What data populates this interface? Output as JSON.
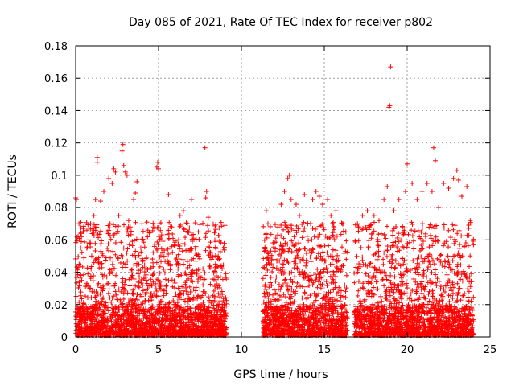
{
  "chart_data": {
    "type": "scatter",
    "title": "Day 085 of 2021, Rate Of TEC Index for receiver p802",
    "xlabel": "GPS time / hours",
    "ylabel": "ROTI / TECUs",
    "xlim": [
      0,
      25
    ],
    "ylim": [
      0,
      0.18
    ],
    "xticks": [
      0,
      5,
      10,
      15,
      20,
      25
    ],
    "yticks": [
      0,
      0.02,
      0.04,
      0.06,
      0.08,
      0.1,
      0.12,
      0.14,
      0.16,
      0.18
    ],
    "xtick_labels": [
      "0",
      "5",
      "10",
      "15",
      "20",
      "25"
    ],
    "ytick_labels": [
      "0",
      "0.02",
      "0.04",
      "0.06",
      "0.08",
      "0.1",
      "0.12",
      "0.14",
      "0.16",
      "0.18"
    ],
    "grid": true,
    "marker": "+",
    "series": [
      {
        "name": "ROTI",
        "color": "#ff0000",
        "segments": [
          [
            0,
            9.1
          ],
          [
            11.3,
            16.4
          ],
          [
            16.8,
            24.0
          ]
        ],
        "points": [
          [
            0.0,
            0.086
          ],
          [
            0.05,
            0.085
          ],
          [
            0.2,
            0.07
          ],
          [
            0.3,
            0.055
          ],
          [
            0.35,
            0.062
          ],
          [
            0.8,
            0.06
          ],
          [
            0.9,
            0.07
          ],
          [
            1.1,
            0.075
          ],
          [
            1.2,
            0.085
          ],
          [
            1.3,
            0.111
          ],
          [
            1.3,
            0.108
          ],
          [
            1.5,
            0.084
          ],
          [
            1.7,
            0.09
          ],
          [
            1.9,
            0.065
          ],
          [
            2.0,
            0.098
          ],
          [
            2.2,
            0.095
          ],
          [
            2.3,
            0.104
          ],
          [
            2.4,
            0.102
          ],
          [
            2.6,
            0.075
          ],
          [
            2.8,
            0.115
          ],
          [
            2.85,
            0.119
          ],
          [
            2.9,
            0.106
          ],
          [
            3.0,
            0.102
          ],
          [
            3.1,
            0.1
          ],
          [
            3.2,
            0.072
          ],
          [
            3.5,
            0.085
          ],
          [
            3.6,
            0.089
          ],
          [
            3.7,
            0.096
          ],
          [
            4.0,
            0.07
          ],
          [
            4.3,
            0.071
          ],
          [
            4.7,
            0.068
          ],
          [
            4.9,
            0.105
          ],
          [
            4.95,
            0.108
          ],
          [
            5.0,
            0.104
          ],
          [
            5.6,
            0.088
          ],
          [
            5.8,
            0.068
          ],
          [
            6.3,
            0.075
          ],
          [
            6.5,
            0.078
          ],
          [
            7.0,
            0.085
          ],
          [
            7.4,
            0.065
          ],
          [
            7.8,
            0.117
          ],
          [
            7.85,
            0.086
          ],
          [
            7.9,
            0.09
          ],
          [
            8.0,
            0.074
          ],
          [
            8.6,
            0.05
          ],
          [
            9.0,
            0.069
          ],
          [
            11.5,
            0.078
          ],
          [
            11.6,
            0.07
          ],
          [
            12.2,
            0.068
          ],
          [
            12.4,
            0.082
          ],
          [
            12.6,
            0.09
          ],
          [
            12.8,
            0.098
          ],
          [
            12.9,
            0.1
          ],
          [
            13.0,
            0.085
          ],
          [
            13.3,
            0.082
          ],
          [
            13.5,
            0.075
          ],
          [
            13.8,
            0.088
          ],
          [
            14.0,
            0.07
          ],
          [
            14.3,
            0.085
          ],
          [
            14.5,
            0.09
          ],
          [
            14.7,
            0.087
          ],
          [
            14.9,
            0.082
          ],
          [
            15.2,
            0.085
          ],
          [
            15.4,
            0.075
          ],
          [
            15.7,
            0.078
          ],
          [
            16.1,
            0.07
          ],
          [
            16.3,
            0.065
          ],
          [
            17.0,
            0.07
          ],
          [
            17.3,
            0.075
          ],
          [
            17.6,
            0.078
          ],
          [
            18.0,
            0.075
          ],
          [
            18.3,
            0.072
          ],
          [
            18.6,
            0.085
          ],
          [
            18.8,
            0.093
          ],
          [
            18.9,
            0.142
          ],
          [
            18.95,
            0.143
          ],
          [
            19.0,
            0.167
          ],
          [
            19.2,
            0.078
          ],
          [
            19.5,
            0.085
          ],
          [
            19.9,
            0.09
          ],
          [
            20.0,
            0.107
          ],
          [
            20.3,
            0.095
          ],
          [
            20.6,
            0.085
          ],
          [
            20.9,
            0.09
          ],
          [
            21.2,
            0.095
          ],
          [
            21.5,
            0.09
          ],
          [
            21.6,
            0.117
          ],
          [
            21.7,
            0.109
          ],
          [
            21.9,
            0.08
          ],
          [
            22.2,
            0.095
          ],
          [
            22.5,
            0.092
          ],
          [
            22.8,
            0.098
          ],
          [
            23.0,
            0.103
          ],
          [
            23.1,
            0.097
          ],
          [
            23.3,
            0.087
          ],
          [
            23.6,
            0.093
          ],
          [
            23.8,
            0.072
          ],
          [
            24.0,
            0.057
          ]
        ]
      }
    ]
  }
}
